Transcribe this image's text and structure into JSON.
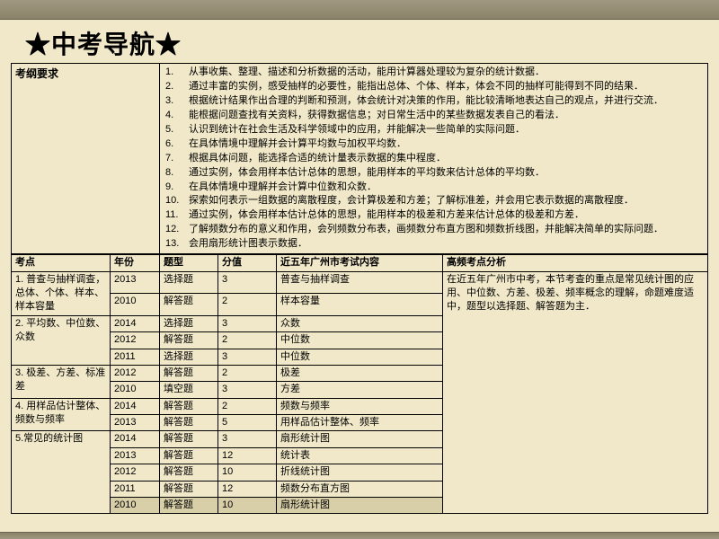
{
  "title": "★中考导航★",
  "outline_label": "考纲要求",
  "requirements": [
    "从事收集、整理、描述和分析数据的活动，能用计算器处理较为复杂的统计数据．",
    "通过丰富的实例，感受抽样的必要性，能指出总体、个体、样本，体会不同的抽样可能得到不同的结果．",
    "根据统计结果作出合理的判断和预测，体会统计对决策的作用，能比较清晰地表达自己的观点，并进行交流．",
    "能根据问题查找有关资料，获得数据信息；对日常生活中的某些数据发表自己的看法．",
    "认识到统计在社会生活及科学领域中的应用，并能解决一些简单的实际问题．",
    "在具体情境中理解并会计算平均数与加权平均数．",
    "根据具体问题，能选择合适的统计量表示数据的集中程度．",
    "通过实例，体会用样本估计总体的思想，能用样本的平均数来估计总体的平均数．",
    "在具体情境中理解并会计算中位数和众数．",
    "探索如何表示一组数据的离散程度，会计算极差和方差；了解标准差，并会用它表示数据的离散程度．",
    "通过实例，体会用样本估计总体的思想，能用样本的极差和方差来估计总体的极差和方差．",
    "了解频数分布的意义和作用，会列频数分布表，画频数分布直方图和频数折线图，并能解决简单的实际问题．",
    "会用扇形统计图表示数据．"
  ],
  "headers": {
    "kd": "考点",
    "yr": "年份",
    "tx": "题型",
    "fz": "分值",
    "nr": "近五年广州市考试内容",
    "fx": "高频考点分析"
  },
  "analysis_text": "在近五年广州市中考，本节考查的重点是常见统计图的应用、中位数、方差、极差、频率概念的理解，命题难度适中，题型以选择题、解答题为主．",
  "topics": [
    {
      "name": "1. 普查与抽样调查，总体、个体、样本、样本容量",
      "rows": [
        {
          "yr": "2013",
          "tx": "选择题",
          "fz": "3",
          "nr": "普查与抽样调查"
        },
        {
          "yr": "2010",
          "tx": "解答题",
          "fz": "2",
          "nr": "样本容量"
        }
      ]
    },
    {
      "name": "2. 平均数、中位数、众数",
      "rows": [
        {
          "yr": "2014",
          "tx": "选择题",
          "fz": "3",
          "nr": "众数"
        },
        {
          "yr": "2012",
          "tx": "解答题",
          "fz": "2",
          "nr": "中位数"
        },
        {
          "yr": "2011",
          "tx": "选择题",
          "fz": "3",
          "nr": "中位数"
        }
      ]
    },
    {
      "name": "3. 极差、方差、标准差",
      "rows": [
        {
          "yr": "2012",
          "tx": "解答题",
          "fz": "2",
          "nr": "极差"
        },
        {
          "yr": "2010",
          "tx": "填空题",
          "fz": "3",
          "nr": "方差"
        }
      ]
    },
    {
      "name": "4. 用样品估计整体、频数与频率",
      "rows": [
        {
          "yr": "2014",
          "tx": "解答题",
          "fz": "2",
          "nr": "频数与频率"
        },
        {
          "yr": "2013",
          "tx": "解答题",
          "fz": "5",
          "nr": "用样品估计整体、频率"
        }
      ]
    },
    {
      "name": "5.常见的统计图",
      "rows": [
        {
          "yr": "2014",
          "tx": "解答题",
          "fz": "3",
          "nr": "扇形统计图"
        },
        {
          "yr": "2013",
          "tx": "解答题",
          "fz": "12",
          "nr": "统计表"
        },
        {
          "yr": "2012",
          "tx": "解答题",
          "fz": "10",
          "nr": "折线统计图"
        },
        {
          "yr": "2011",
          "tx": "解答题",
          "fz": "12",
          "nr": "频数分布直方图"
        },
        {
          "yr": "2010",
          "tx": "解答题",
          "fz": "10",
          "nr": "扇形统计图",
          "hi": true
        }
      ]
    }
  ]
}
